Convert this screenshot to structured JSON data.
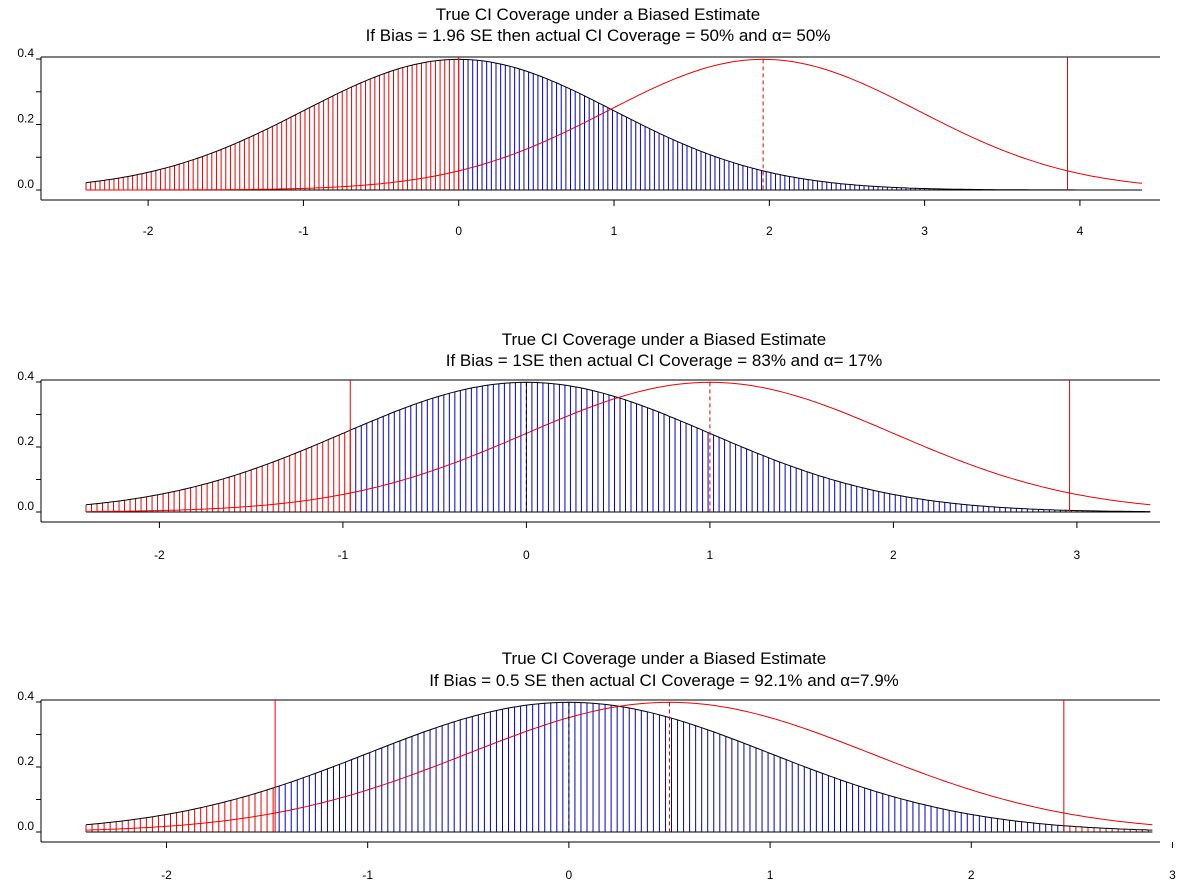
{
  "chart_data": [
    {
      "type": "area",
      "title": "True CI Coverage under a Biased Estimate",
      "subtitle": "If Bias = 1.96  SE then actual CI Coverage = 50% and α= 50%",
      "bias": 1.96,
      "coverage_pct": 50,
      "alpha_pct": 50,
      "xlim": [
        -2.4,
        4.4
      ],
      "ylim": [
        0.0,
        0.4
      ],
      "x_ticks": [
        "-2",
        "-1",
        "0",
        "1",
        "2",
        "3",
        "4"
      ],
      "y_ticks": [
        "0.0",
        "0.2",
        "0.4"
      ],
      "ci_bounds": [
        0.0,
        3.92
      ],
      "series": [
        {
          "values": "standard normal density centered at 0, shaded by CI region (blue inside, red outside)"
        },
        {
          "values": "normal density centered at 1.96 (biased estimate)"
        }
      ],
      "colors": {
        "inside": "#0000cc",
        "outside": "#ee0000",
        "curve": "#000000"
      }
    },
    {
      "type": "area",
      "title": "True CI Coverage under a Biased Estimate",
      "subtitle": "If Bias = 1SE then actual CI Coverage = 83% and α= 17%",
      "bias": 1.0,
      "coverage_pct": 83,
      "alpha_pct": 17,
      "xlim": [
        -2.4,
        3.4
      ],
      "ylim": [
        0.0,
        0.4
      ],
      "x_ticks": [
        "-2",
        "-1",
        "0",
        "1",
        "2",
        "3"
      ],
      "y_ticks": [
        "0.0",
        "0.2",
        "0.4"
      ],
      "ci_bounds": [
        -0.96,
        2.96
      ],
      "colors": {
        "inside": "#0000cc",
        "outside": "#ee0000",
        "curve": "#000000"
      }
    },
    {
      "type": "area",
      "title": "True CI Coverage under a Biased Estimate",
      "subtitle": "If Bias = 0.5 SE then actual CI Coverage = 92.1% and α=7.9%",
      "bias": 0.5,
      "coverage_pct": 92.1,
      "alpha_pct": 7.9,
      "xlim": [
        -2.4,
        2.9
      ],
      "ylim": [
        0.0,
        0.4
      ],
      "x_ticks": [
        "-2",
        "-1",
        "0",
        "1",
        "2",
        "3"
      ],
      "y_ticks": [
        "0.0",
        "0.2",
        "0.4"
      ],
      "ci_bounds": [
        -1.46,
        2.46
      ],
      "colors": {
        "inside": "#0000cc",
        "outside": "#ee0000",
        "curve": "#000000"
      }
    }
  ]
}
